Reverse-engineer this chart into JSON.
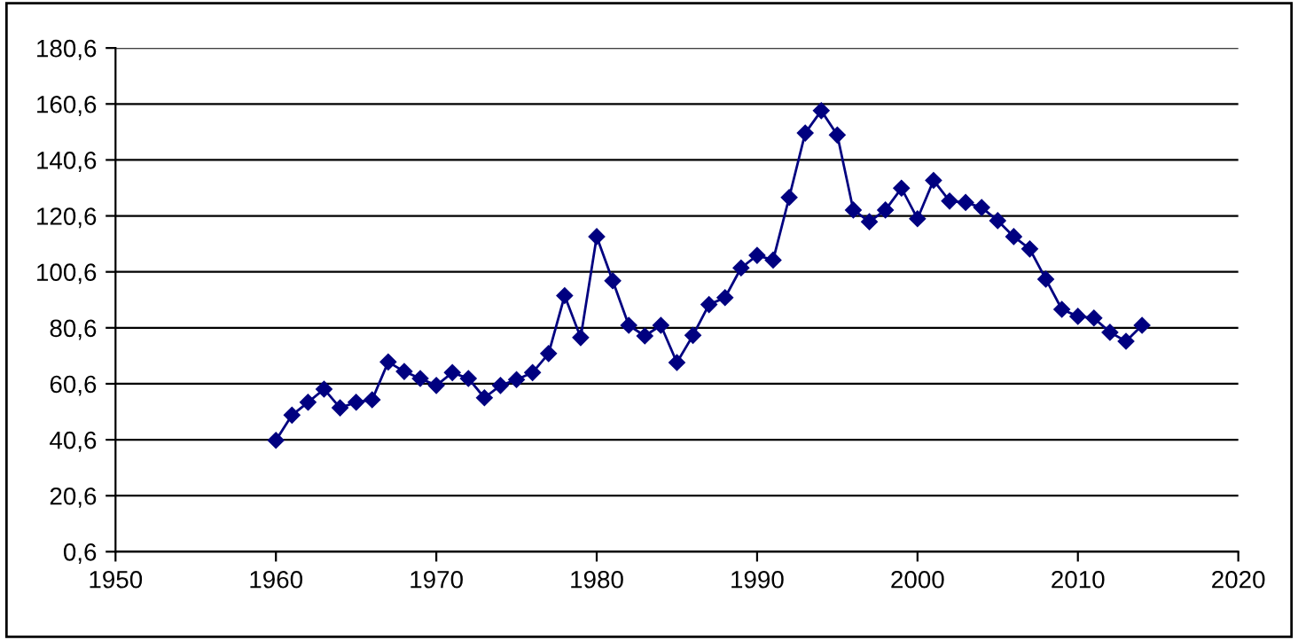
{
  "chart_data": {
    "type": "line",
    "x": [
      1960,
      1961,
      1962,
      1963,
      1964,
      1965,
      1966,
      1967,
      1968,
      1969,
      1970,
      1971,
      1972,
      1973,
      1974,
      1975,
      1976,
      1977,
      1978,
      1979,
      1980,
      1981,
      1982,
      1983,
      1984,
      1985,
      1986,
      1987,
      1988,
      1989,
      1990,
      1991,
      1992,
      1993,
      1994,
      1995,
      1996,
      1997,
      1998,
      1999,
      2000,
      2001,
      2002,
      2003,
      2004,
      2005,
      2006,
      2007,
      2008,
      2009,
      2010,
      2011,
      2012,
      2013,
      2014
    ],
    "series": [
      {
        "color": "#000080",
        "values": [
          40.4,
          49.4,
          54.0,
          58.7,
          52.0,
          54.0,
          54.9,
          68.4,
          65.0,
          62.5,
          60.0,
          64.6,
          62.5,
          55.6,
          60.0,
          62.1,
          64.6,
          71.4,
          92.1,
          77.1,
          113.2,
          97.4,
          81.5,
          77.7,
          81.5,
          68.2,
          77.9,
          88.9,
          91.4,
          102.0,
          106.5,
          104.8,
          127.2,
          150.2,
          158.2,
          149.5,
          122.7,
          118.5,
          122.7,
          130.5,
          119.6,
          133.3,
          125.9,
          125.4,
          123.6,
          118.9,
          113.2,
          108.8,
          98.0,
          87.2,
          84.7,
          84.1,
          79.0,
          75.8,
          81.5
        ]
      }
    ],
    "xlim": [
      1950,
      2020
    ],
    "xticks": [
      1950,
      1960,
      1970,
      1980,
      1990,
      2000,
      2010,
      2020
    ],
    "ylim": [
      0.6,
      180.6
    ],
    "yticks": [
      {
        "value": 0.6,
        "label": "0,6"
      },
      {
        "value": 20.6,
        "label": "20,6"
      },
      {
        "value": 40.6,
        "label": "40,6"
      },
      {
        "value": 60.6,
        "label": "60,6"
      },
      {
        "value": 80.6,
        "label": "80,6"
      },
      {
        "value": 100.6,
        "label": "100,6"
      },
      {
        "value": 120.6,
        "label": "120,6"
      },
      {
        "value": 140.6,
        "label": "140,6"
      },
      {
        "value": 160.6,
        "label": "160,6"
      },
      {
        "value": 180.6,
        "label": "180,6"
      }
    ],
    "grid": "y",
    "marker": "diamond",
    "line_style": "solid"
  }
}
